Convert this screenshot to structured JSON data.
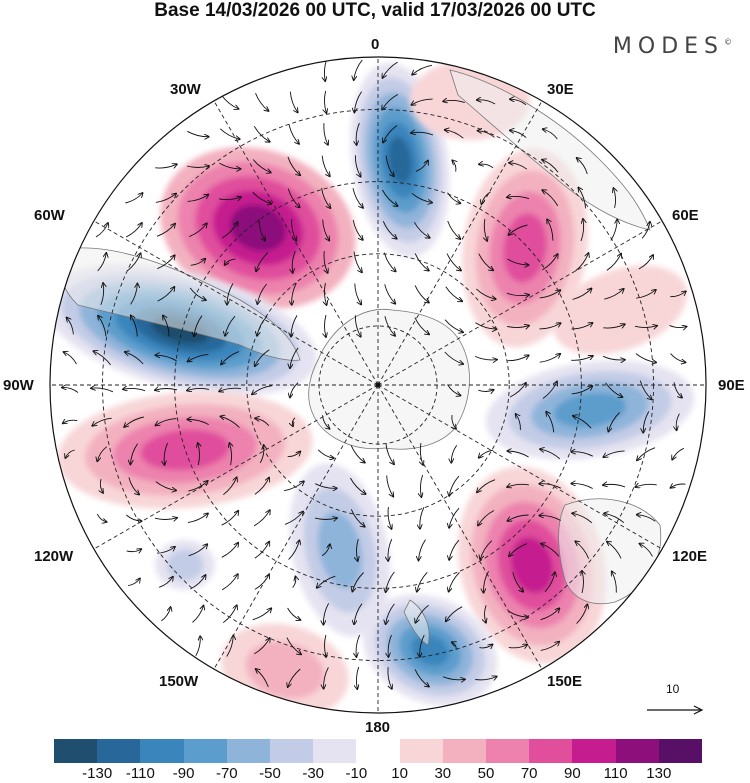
{
  "title": "Base 14/03/2026 00 UTC, valid 17/03/2026 00 UTC",
  "brand": "MODES",
  "brand_mark": "©",
  "longitude_labels": {
    "top": "0",
    "e30": "30E",
    "e60": "60E",
    "e90": "90E",
    "e120": "120E",
    "e150": "150E",
    "bottom": "180",
    "w150": "150W",
    "w120": "120W",
    "w90": "90W",
    "w60": "60W",
    "w30": "30W"
  },
  "reference_vector": "10",
  "colorbar": {
    "colors": [
      "#1f4e6e",
      "#28679a",
      "#3b85bd",
      "#5b9dcc",
      "#8fb4da",
      "#c3cce6",
      "#e5e3f1",
      "#ffffff",
      "#f8d6d8",
      "#f3b1c0",
      "#ec82ad",
      "#e04e9c",
      "#c51d8f",
      "#8c0f7c",
      "#571066"
    ],
    "tick_labels": [
      "-130",
      "-110",
      "-90",
      "-70",
      "-50",
      "-30",
      "-10",
      "10",
      "30",
      "50",
      "70",
      "90",
      "110",
      "130"
    ]
  }
}
